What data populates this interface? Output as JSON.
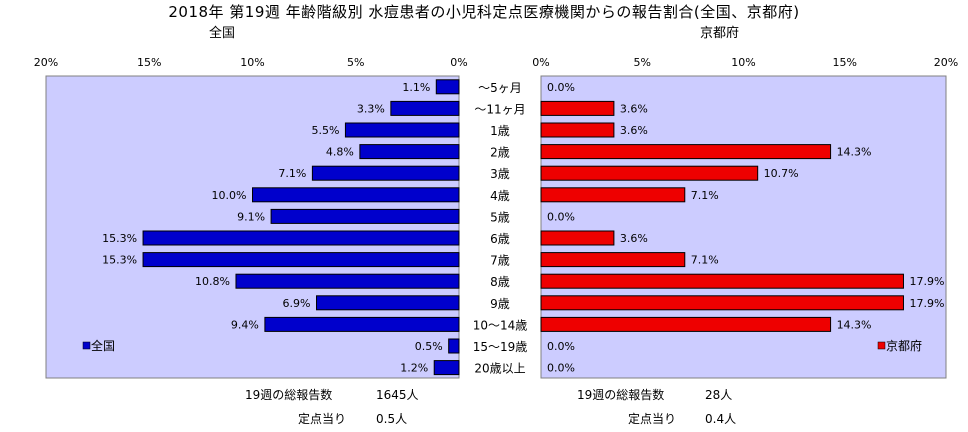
{
  "title": "2018年 第19週 年齢階級別 水痘患者の小児科定点医療機関からの報告割合(全国、京都府)",
  "chart_data": [
    {
      "type": "bar",
      "orientation": "horizontal",
      "direction": "right-to-left",
      "subtitle": "全国",
      "legend": "全国",
      "legend_position": "bottom-left",
      "color": "#0000CC",
      "plot_background": "#CCCCFF",
      "xlim": [
        0,
        20
      ],
      "xticks": [
        "0%",
        "5%",
        "10%",
        "15%",
        "20%"
      ],
      "categories": [
        "〜5ヶ月",
        "〜11ヶ月",
        "1歳",
        "2歳",
        "3歳",
        "4歳",
        "5歳",
        "6歳",
        "7歳",
        "8歳",
        "9歳",
        "10〜14歳",
        "15〜19歳",
        "20歳以上"
      ],
      "values": [
        1.1,
        3.3,
        5.5,
        4.8,
        7.1,
        10.0,
        9.1,
        15.3,
        15.3,
        10.8,
        6.9,
        9.4,
        0.5,
        1.2
      ],
      "labels": [
        "1.1%",
        "3.3%",
        "5.5%",
        "4.8%",
        "7.1%",
        "10.0%",
        "9.1%",
        "15.3%",
        "15.3%",
        "10.8%",
        "6.9%",
        "9.4%",
        "0.5%",
        "1.2%"
      ]
    },
    {
      "type": "bar",
      "orientation": "horizontal",
      "direction": "left-to-right",
      "subtitle": "京都府",
      "legend": "京都府",
      "legend_position": "bottom-right",
      "color": "#EE0000",
      "plot_background": "#CCCCFF",
      "xlim": [
        0,
        20
      ],
      "xticks": [
        "0%",
        "5%",
        "10%",
        "15%",
        "20%"
      ],
      "categories": [
        "〜5ヶ月",
        "〜11ヶ月",
        "1歳",
        "2歳",
        "3歳",
        "4歳",
        "5歳",
        "6歳",
        "7歳",
        "8歳",
        "9歳",
        "10〜14歳",
        "15〜19歳",
        "20歳以上"
      ],
      "values": [
        0.0,
        3.6,
        3.6,
        14.3,
        10.7,
        7.1,
        0.0,
        3.6,
        7.1,
        17.9,
        17.9,
        14.3,
        0.0,
        0.0
      ],
      "labels": [
        "0.0%",
        "3.6%",
        "3.6%",
        "14.3%",
        "10.7%",
        "7.1%",
        "0.0%",
        "3.6%",
        "7.1%",
        "17.9%",
        "17.9%",
        "14.3%",
        "0.0%",
        "0.0%"
      ]
    }
  ],
  "footer": {
    "national_total_label": "19週の総報告数",
    "national_total_value": "1645人",
    "national_per_label": "定点当り",
    "national_per_value": "0.5人",
    "kyoto_total_label": "19週の総報告数",
    "kyoto_total_value": "28人",
    "kyoto_per_label": "定点当り",
    "kyoto_per_value": "0.4人"
  }
}
